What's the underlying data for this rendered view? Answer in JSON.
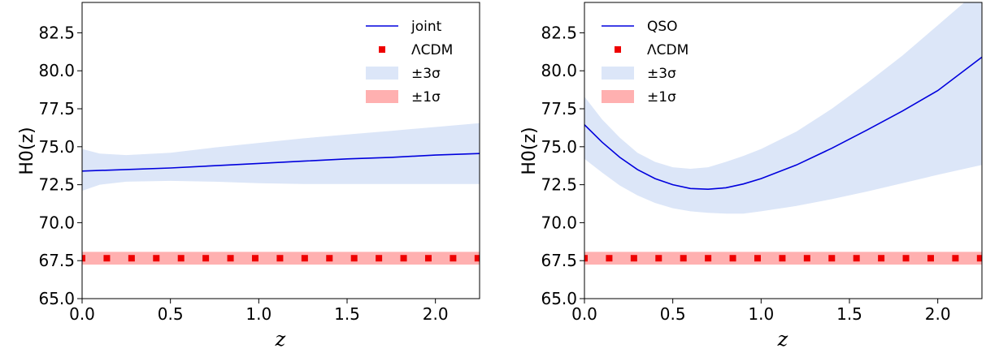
{
  "chart_data": [
    {
      "type": "line",
      "panel": "left",
      "xlabel": "z",
      "ylabel": "H0(z)",
      "xlim": [
        0.0,
        2.25
      ],
      "ylim": [
        65.0,
        84.5
      ],
      "xticks": [
        "0.0",
        "0.5",
        "1.0",
        "1.5",
        "2.0"
      ],
      "yticks": [
        "65.0",
        "67.5",
        "70.0",
        "72.5",
        "75.0",
        "77.5",
        "80.0",
        "82.5"
      ],
      "grid": false,
      "legend_position": "top-right",
      "legend": [
        "joint",
        "ΛCDM",
        "±3σ",
        "±1σ"
      ],
      "series": [
        {
          "name": "joint",
          "kind": "line",
          "color": "#0000dd",
          "x": [
            0.0,
            0.25,
            0.5,
            0.75,
            1.0,
            1.25,
            1.5,
            1.75,
            2.0,
            2.25
          ],
          "y": [
            73.4,
            73.5,
            73.6,
            73.75,
            73.9,
            74.05,
            74.2,
            74.3,
            74.45,
            74.55
          ]
        },
        {
          "name": "±3σ",
          "kind": "band",
          "color": "#dce6f8",
          "x": [
            0.0,
            0.1,
            0.25,
            0.5,
            0.75,
            1.0,
            1.25,
            1.5,
            1.75,
            2.0,
            2.25
          ],
          "lower": [
            72.1,
            72.5,
            72.7,
            72.75,
            72.7,
            72.6,
            72.55,
            72.55,
            72.55,
            72.55,
            72.55
          ],
          "upper": [
            74.85,
            74.55,
            74.45,
            74.6,
            74.95,
            75.25,
            75.55,
            75.8,
            76.05,
            76.3,
            76.55
          ]
        },
        {
          "name": "ΛCDM",
          "kind": "markers",
          "color": "#ee0000",
          "x": [
            0.0,
            0.14,
            0.28,
            0.42,
            0.56,
            0.7,
            0.84,
            0.98,
            1.12,
            1.26,
            1.4,
            1.54,
            1.68,
            1.82,
            1.96,
            2.1,
            2.24
          ],
          "y": [
            67.66,
            67.66,
            67.66,
            67.66,
            67.66,
            67.66,
            67.66,
            67.66,
            67.66,
            67.66,
            67.66,
            67.66,
            67.66,
            67.66,
            67.66,
            67.66,
            67.66
          ]
        },
        {
          "name": "±1σ",
          "kind": "hband",
          "color": "#ffb0b0",
          "lower": 67.24,
          "upper": 68.08
        }
      ]
    },
    {
      "type": "line",
      "panel": "right",
      "xlabel": "z",
      "ylabel": "H0(z)",
      "xlim": [
        0.0,
        2.25
      ],
      "ylim": [
        65.0,
        84.5
      ],
      "xticks": [
        "0.0",
        "0.5",
        "1.0",
        "1.5",
        "2.0"
      ],
      "yticks": [
        "65.0",
        "67.5",
        "70.0",
        "72.5",
        "75.0",
        "77.5",
        "80.0",
        "82.5"
      ],
      "grid": false,
      "legend_position": "top-left",
      "legend": [
        "QSO",
        "ΛCDM",
        "±3σ",
        "±1σ"
      ],
      "series": [
        {
          "name": "QSO",
          "kind": "line",
          "color": "#0000dd",
          "x": [
            0.0,
            0.1,
            0.2,
            0.3,
            0.4,
            0.5,
            0.6,
            0.7,
            0.8,
            0.9,
            1.0,
            1.2,
            1.4,
            1.6,
            1.8,
            2.0,
            2.25
          ],
          "y": [
            76.45,
            75.3,
            74.3,
            73.5,
            72.9,
            72.5,
            72.25,
            72.2,
            72.3,
            72.55,
            72.9,
            73.8,
            74.9,
            76.1,
            77.35,
            78.7,
            80.9
          ]
        },
        {
          "name": "±3σ",
          "kind": "band",
          "color": "#dce6f8",
          "x": [
            0.0,
            0.1,
            0.2,
            0.3,
            0.4,
            0.5,
            0.6,
            0.7,
            0.8,
            0.9,
            1.0,
            1.2,
            1.4,
            1.6,
            1.8,
            2.0,
            2.25
          ],
          "lower": [
            74.2,
            73.3,
            72.45,
            71.8,
            71.3,
            70.95,
            70.75,
            70.65,
            70.6,
            70.6,
            70.75,
            71.1,
            71.55,
            72.05,
            72.6,
            73.15,
            73.8
          ],
          "upper": [
            78.3,
            76.8,
            75.6,
            74.6,
            74.0,
            73.65,
            73.55,
            73.65,
            74.0,
            74.4,
            74.85,
            76.0,
            77.5,
            79.2,
            81.0,
            83.0,
            85.5
          ]
        },
        {
          "name": "ΛCDM",
          "kind": "markers",
          "color": "#ee0000",
          "x": [
            0.0,
            0.14,
            0.28,
            0.42,
            0.56,
            0.7,
            0.84,
            0.98,
            1.12,
            1.26,
            1.4,
            1.54,
            1.68,
            1.82,
            1.96,
            2.1,
            2.24
          ],
          "y": [
            67.66,
            67.66,
            67.66,
            67.66,
            67.66,
            67.66,
            67.66,
            67.66,
            67.66,
            67.66,
            67.66,
            67.66,
            67.66,
            67.66,
            67.66,
            67.66,
            67.66
          ]
        },
        {
          "name": "±1σ",
          "kind": "hband",
          "color": "#ffb0b0",
          "lower": 67.24,
          "upper": 68.08
        }
      ]
    }
  ]
}
